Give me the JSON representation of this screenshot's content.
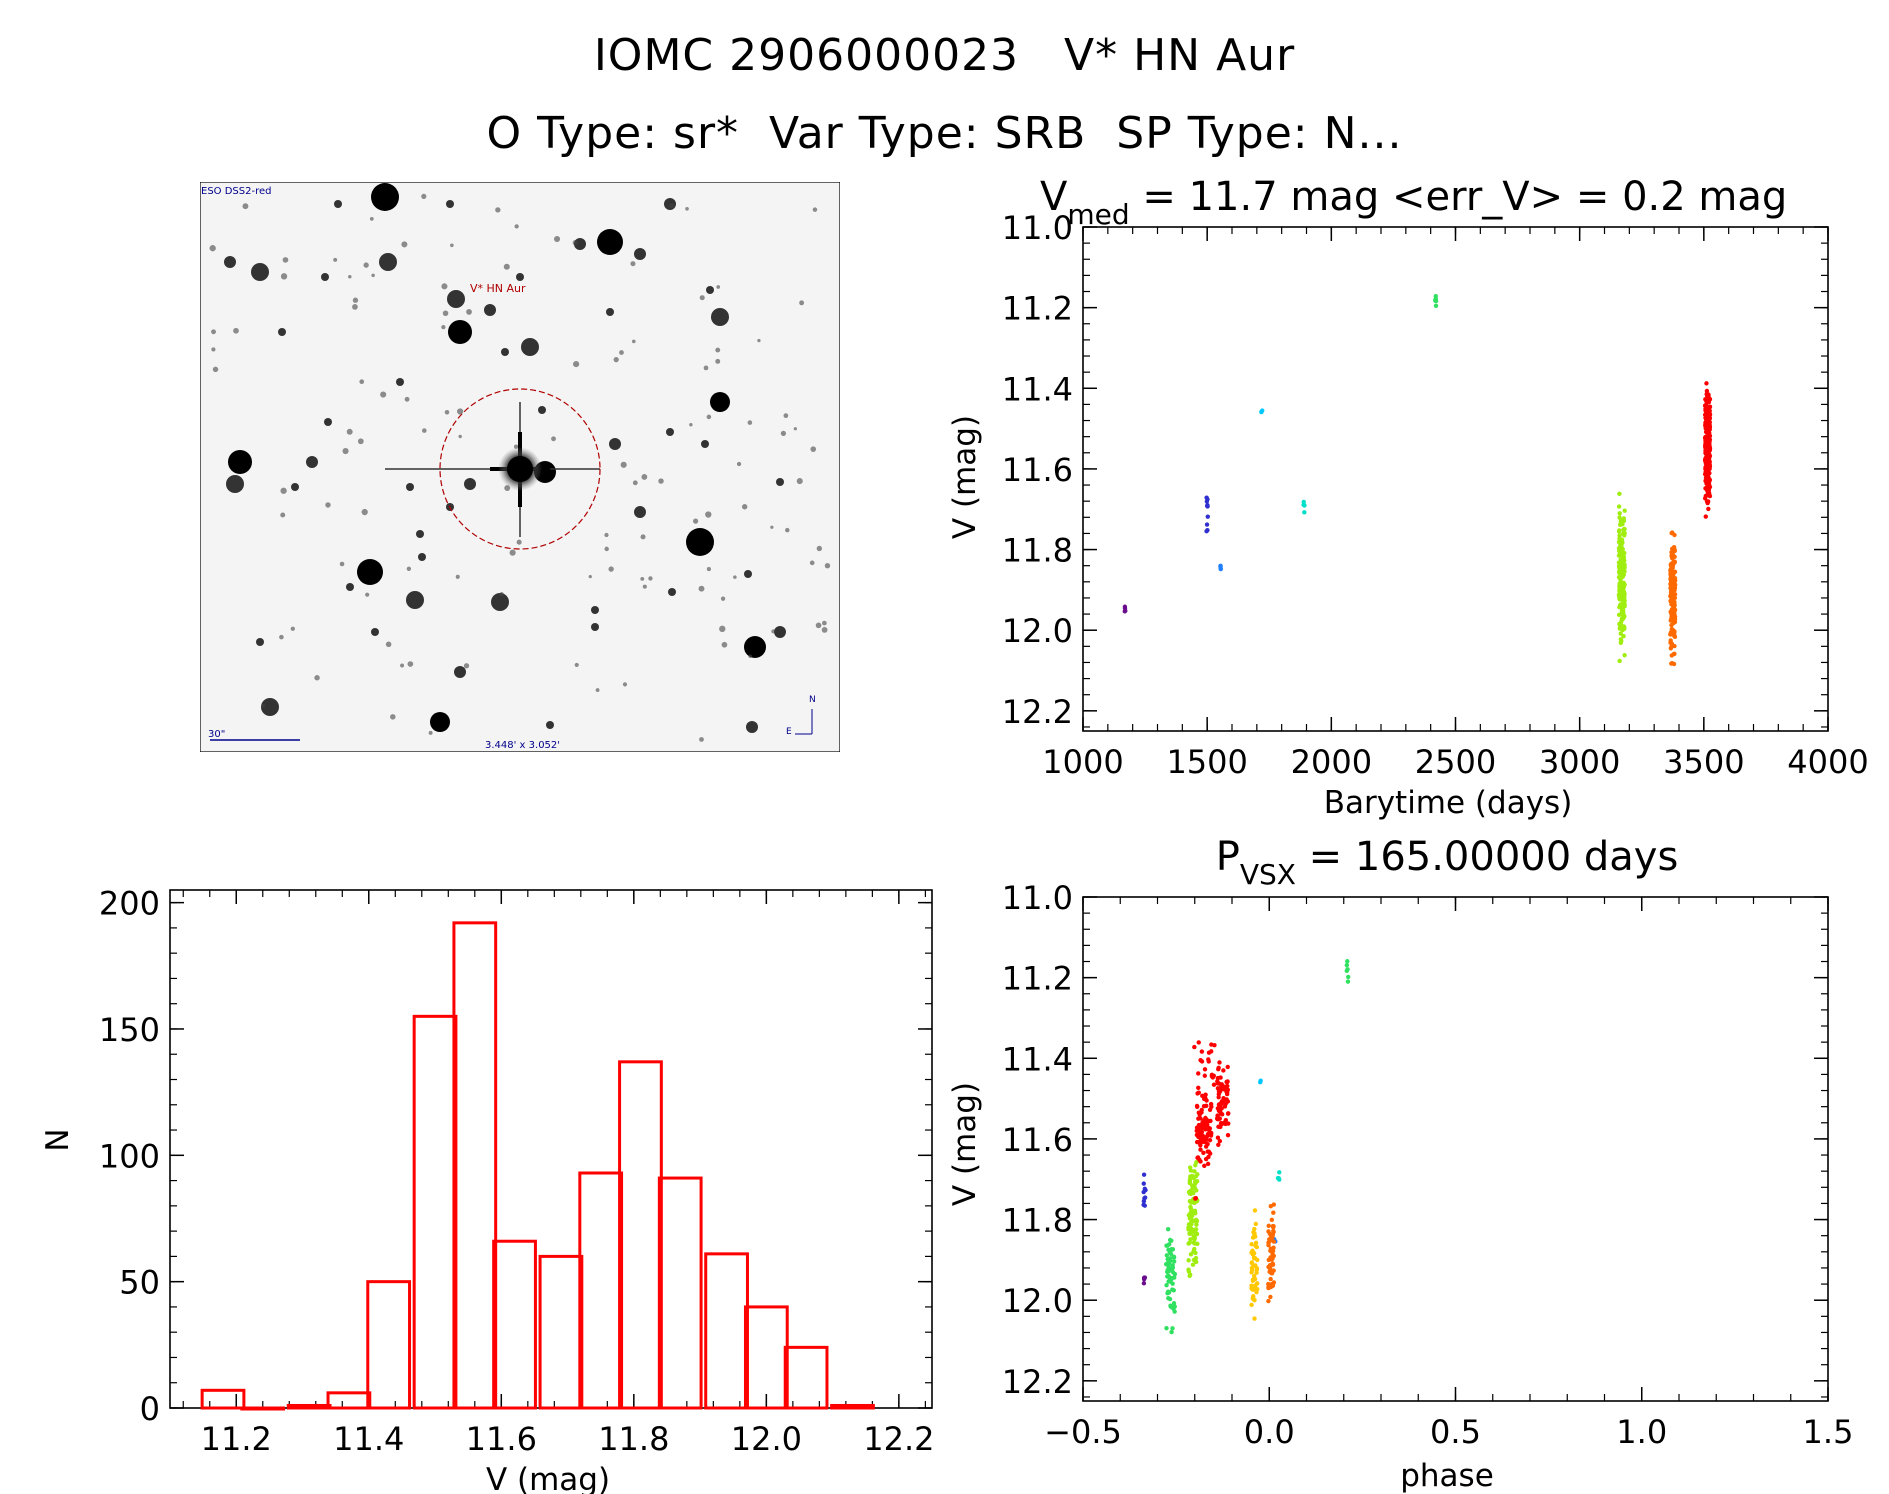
{
  "header": {
    "title": "IOMC 2906000023   V* HN Aur",
    "subtitle": "O Type: sr*  Var Type: SRB  SP Type: N..."
  },
  "finder": {
    "survey_label": "ESO DSS2-red",
    "target_label": "V* HN Aur",
    "scale_label": "30\"",
    "fov_label": "3.448' x 3.052'",
    "north_label": "N",
    "east_label": "E"
  },
  "colors": {
    "hist": "#ff0000",
    "seasons": [
      "#6a0d8c",
      "#3030d0",
      "#2080ff",
      "#00c8ff",
      "#00e0c8",
      "#30e060",
      "#a0ee10",
      "#ffc800",
      "#ff6a00",
      "#ff0000"
    ]
  },
  "chart_data": [
    {
      "type": "scatter",
      "name": "light-curve",
      "title": "V_med = 11.7 mag <err_V> = 0.2 mag",
      "title_parts": {
        "v": "V",
        "v_sub": "med",
        "rest": " = 11.7 mag <err_V> = 0.2 mag"
      },
      "xlabel": "Barytime (days)",
      "ylabel": "V (mag)",
      "xlim": [
        1000,
        4000
      ],
      "ylim": [
        11.0,
        12.25
      ],
      "y_inverted": true,
      "x_ticks": [
        "1000",
        "1500",
        "2000",
        "2500",
        "3000",
        "3500",
        "4000"
      ],
      "y_ticks": [
        "11.0",
        "11.2",
        "11.4",
        "11.6",
        "11.8",
        "12.0",
        "12.2"
      ],
      "series": [
        {
          "name": "season-1",
          "color_index": 0,
          "x_center": 1170,
          "x_spread": 2,
          "y_min": 11.94,
          "y_max": 11.96,
          "n": 4,
          "dist": "uniform"
        },
        {
          "name": "season-2",
          "color_index": 1,
          "x_center": 1500,
          "x_spread": 3,
          "y_min": 11.67,
          "y_max": 11.77,
          "n": 10,
          "dist": "uniform"
        },
        {
          "name": "season-3",
          "color_index": 2,
          "x_center": 1555,
          "x_spread": 2,
          "y_min": 11.84,
          "y_max": 11.86,
          "n": 4,
          "dist": "uniform"
        },
        {
          "name": "season-4",
          "color_index": 3,
          "x_center": 1720,
          "x_spread": 2,
          "y_min": 11.45,
          "y_max": 11.46,
          "n": 3,
          "dist": "uniform"
        },
        {
          "name": "season-5",
          "color_index": 4,
          "x_center": 1890,
          "x_spread": 2,
          "y_min": 11.68,
          "y_max": 11.71,
          "n": 4,
          "dist": "uniform"
        },
        {
          "name": "season-6",
          "color_index": 5,
          "x_center": 2420,
          "x_spread": 2,
          "y_min": 11.15,
          "y_max": 11.21,
          "n": 6,
          "dist": "uniform"
        },
        {
          "name": "season-7",
          "color_index": 6,
          "x_center": 3170,
          "x_spread": 12,
          "y_min": 11.65,
          "y_max": 12.1,
          "n": 170,
          "dist": "center"
        },
        {
          "name": "season-8",
          "color_index": 8,
          "x_center": 3375,
          "x_spread": 10,
          "y_min": 11.7,
          "y_max": 12.13,
          "n": 160,
          "dist": "center"
        },
        {
          "name": "season-9",
          "color_index": 9,
          "x_center": 3515,
          "x_spread": 10,
          "y_min": 11.32,
          "y_max": 11.75,
          "n": 260,
          "dist": "center"
        }
      ]
    },
    {
      "type": "bar",
      "name": "histogram",
      "title": "",
      "xlabel": "V (mag)",
      "ylabel": "N",
      "xlim": [
        11.1,
        12.25
      ],
      "ylim": [
        0,
        205
      ],
      "x_ticks": [
        "11.2",
        "11.4",
        "11.6",
        "11.8",
        "12.0",
        "12.2"
      ],
      "y_ticks": [
        "0",
        "50",
        "100",
        "150",
        "200"
      ],
      "bin_width": 0.063,
      "bin_centers": [
        11.18,
        11.24,
        11.31,
        11.37,
        11.43,
        11.5,
        11.56,
        11.62,
        11.69,
        11.75,
        11.81,
        11.87,
        11.94,
        12.0,
        12.06,
        12.13
      ],
      "values": [
        7,
        0,
        1,
        6,
        50,
        155,
        192,
        66,
        60,
        93,
        137,
        91,
        61,
        40,
        24,
        1
      ]
    },
    {
      "type": "scatter",
      "name": "phase-curve",
      "title": "P_vsx = 165.00000 days",
      "title_parts": {
        "p": "P",
        "p_sub": "VSX",
        "rest": " = 165.00000 days"
      },
      "xlabel": "phase",
      "ylabel": "V (mag)",
      "xlim": [
        -0.5,
        1.5
      ],
      "ylim": [
        11.0,
        12.25
      ],
      "y_inverted": true,
      "x_ticks": [
        "−0.5",
        "0.0",
        "0.5",
        "1.0",
        "1.5"
      ],
      "y_ticks": [
        "11.0",
        "11.2",
        "11.4",
        "11.6",
        "11.8",
        "12.0",
        "12.2"
      ],
      "series": [
        {
          "name": "grp-purple",
          "color_index": 0,
          "x_center": -0.335,
          "x_spread": 0.002,
          "y_min": 11.94,
          "y_max": 11.96,
          "n": 4,
          "dist": "uniform"
        },
        {
          "name": "grp-blue",
          "color_index": 1,
          "x_center": -0.335,
          "x_spread": 0.003,
          "y_min": 11.67,
          "y_max": 11.77,
          "n": 10,
          "dist": "uniform"
        },
        {
          "name": "grp-lightblue",
          "color_index": 2,
          "x_center": 0.015,
          "x_spread": 0.003,
          "y_min": 11.84,
          "y_max": 11.86,
          "n": 3,
          "dist": "uniform"
        },
        {
          "name": "grp-cyan",
          "color_index": 3,
          "x_center": -0.025,
          "x_spread": 0.002,
          "y_min": 11.45,
          "y_max": 11.46,
          "n": 2,
          "dist": "uniform"
        },
        {
          "name": "grp-teal",
          "color_index": 4,
          "x_center": 0.025,
          "x_spread": 0.002,
          "y_min": 11.68,
          "y_max": 11.71,
          "n": 4,
          "dist": "uniform"
        },
        {
          "name": "grp-mint",
          "color_index": 5,
          "x_center": 0.21,
          "x_spread": 0.002,
          "y_min": 11.15,
          "y_max": 11.21,
          "n": 6,
          "dist": "uniform"
        },
        {
          "name": "grp-green",
          "color_index": 5,
          "x_center": -0.265,
          "x_spread": 0.012,
          "y_min": 11.78,
          "y_max": 12.1,
          "n": 60,
          "dist": "center"
        },
        {
          "name": "grp-lime",
          "color_index": 6,
          "x_center": -0.205,
          "x_spread": 0.012,
          "y_min": 11.62,
          "y_max": 11.97,
          "n": 100,
          "dist": "center"
        },
        {
          "name": "grp-yellow",
          "color_index": 7,
          "x_center": -0.04,
          "x_spread": 0.008,
          "y_min": 11.75,
          "y_max": 12.1,
          "n": 50,
          "dist": "center"
        },
        {
          "name": "grp-orange",
          "color_index": 8,
          "x_center": 0.005,
          "x_spread": 0.008,
          "y_min": 11.7,
          "y_max": 12.08,
          "n": 60,
          "dist": "center"
        },
        {
          "name": "grp-red-a",
          "color_index": 9,
          "x_center": -0.175,
          "x_spread": 0.02,
          "y_min": 11.45,
          "y_max": 11.72,
          "n": 90,
          "dist": "center"
        },
        {
          "name": "grp-red-b",
          "color_index": 9,
          "x_center": -0.125,
          "x_spread": 0.015,
          "y_min": 11.38,
          "y_max": 11.65,
          "n": 70,
          "dist": "center"
        },
        {
          "name": "grp-red-c",
          "color_index": 9,
          "x_center": -0.17,
          "x_spread": 0.04,
          "y_min": 11.36,
          "y_max": 11.5,
          "n": 30,
          "dist": "uniform"
        },
        {
          "name": "grp-red-d",
          "color_index": 9,
          "x_center": -0.2,
          "x_spread": 0.003,
          "y_min": 11.73,
          "y_max": 11.76,
          "n": 2,
          "dist": "uniform"
        }
      ]
    }
  ]
}
